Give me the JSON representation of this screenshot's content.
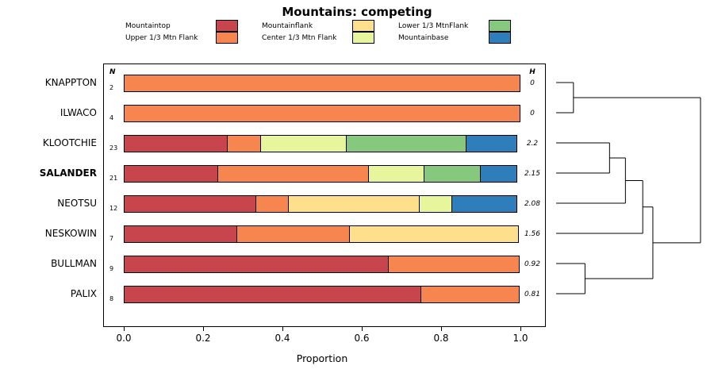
{
  "title": "Mountains: competing",
  "legend": {
    "items": [
      {
        "label": "Mountaintop",
        "color": "#C8454D"
      },
      {
        "label": "Upper 1/3 Mtn Flank",
        "color": "#F7854F"
      },
      {
        "label": "Mountainflank",
        "color": "#FEDF8B"
      },
      {
        "label": "Center 1/3 Mtn Flank",
        "color": "#E7F59C"
      },
      {
        "label": "Lower 1/3 MtnFlank",
        "color": "#86C87E"
      },
      {
        "label": "Mountainbase",
        "color": "#2E7EBC"
      }
    ]
  },
  "chart_data": {
    "type": "bar",
    "orientation": "horizontal-stacked",
    "xlabel": "Proportion",
    "xlim": [
      0,
      1
    ],
    "x_ticks": [
      "0.0",
      "0.2",
      "0.4",
      "0.6",
      "0.8",
      "1.0"
    ],
    "n_header": "N",
    "h_header": "H",
    "rows": [
      {
        "label": "KNAPPTON",
        "bold": false,
        "n": 2,
        "h": "0",
        "segments": [
          {
            "series": "Upper 1/3 Mtn Flank",
            "value": 1.0
          }
        ]
      },
      {
        "label": "ILWACO",
        "bold": false,
        "n": 4,
        "h": "0",
        "segments": [
          {
            "series": "Upper 1/3 Mtn Flank",
            "value": 1.0
          }
        ]
      },
      {
        "label": "KLOOTCHIE",
        "bold": false,
        "n": 23,
        "h": "2.2",
        "segments": [
          {
            "series": "Mountaintop",
            "value": 0.261
          },
          {
            "series": "Upper 1/3 Mtn Flank",
            "value": 0.087
          },
          {
            "series": "Center 1/3 Mtn Flank",
            "value": 0.217
          },
          {
            "series": "Lower 1/3 MtnFlank",
            "value": 0.304
          },
          {
            "series": "Mountainbase",
            "value": 0.131
          }
        ]
      },
      {
        "label": "SALANDER",
        "bold": true,
        "n": 21,
        "h": "2.15",
        "segments": [
          {
            "series": "Mountaintop",
            "value": 0.238
          },
          {
            "series": "Upper 1/3 Mtn Flank",
            "value": 0.381
          },
          {
            "series": "Center 1/3 Mtn Flank",
            "value": 0.143
          },
          {
            "series": "Lower 1/3 MtnFlank",
            "value": 0.143
          },
          {
            "series": "Mountainbase",
            "value": 0.095
          }
        ]
      },
      {
        "label": "NEOTSU",
        "bold": false,
        "n": 12,
        "h": "2.08",
        "segments": [
          {
            "series": "Mountaintop",
            "value": 0.333
          },
          {
            "series": "Upper 1/3 Mtn Flank",
            "value": 0.084
          },
          {
            "series": "Mountainflank",
            "value": 0.333
          },
          {
            "series": "Center 1/3 Mtn Flank",
            "value": 0.083
          },
          {
            "series": "Mountainbase",
            "value": 0.167
          }
        ]
      },
      {
        "label": "NESKOWIN",
        "bold": false,
        "n": 7,
        "h": "1.56",
        "segments": [
          {
            "series": "Mountaintop",
            "value": 0.286
          },
          {
            "series": "Upper 1/3 Mtn Flank",
            "value": 0.286
          },
          {
            "series": "Mountainflank",
            "value": 0.428
          }
        ]
      },
      {
        "label": "BULLMAN",
        "bold": false,
        "n": 9,
        "h": "0.92",
        "segments": [
          {
            "series": "Mountaintop",
            "value": 0.667
          },
          {
            "series": "Upper 1/3 Mtn Flank",
            "value": 0.333
          }
        ]
      },
      {
        "label": "PALIX",
        "bold": false,
        "n": 8,
        "h": "0.81",
        "segments": [
          {
            "series": "Mountaintop",
            "value": 0.75
          },
          {
            "series": "Upper 1/3 Mtn Flank",
            "value": 0.25
          }
        ]
      }
    ],
    "dendrogram": {
      "leaf_order": [
        "KNAPPTON",
        "ILWACO",
        "KLOOTCHIE",
        "SALANDER",
        "NEOTSU",
        "NESKOWIN",
        "BULLMAN",
        "PALIX"
      ],
      "segments": [
        {
          "x1": 0,
          "y1": 0,
          "x2": 0.12,
          "y2": 0
        },
        {
          "x1": 0,
          "y1": 1,
          "x2": 0.12,
          "y2": 1
        },
        {
          "x1": 0.12,
          "y1": 0,
          "x2": 0.12,
          "y2": 1
        },
        {
          "x1": 0,
          "y1": 2,
          "x2": 0.37,
          "y2": 2
        },
        {
          "x1": 0,
          "y1": 3,
          "x2": 0.37,
          "y2": 3
        },
        {
          "x1": 0.37,
          "y1": 2,
          "x2": 0.37,
          "y2": 3
        },
        {
          "x1": 0.37,
          "y1": 2.5,
          "x2": 0.48,
          "y2": 2.5
        },
        {
          "x1": 0,
          "y1": 4,
          "x2": 0.48,
          "y2": 4
        },
        {
          "x1": 0.48,
          "y1": 2.5,
          "x2": 0.48,
          "y2": 4
        },
        {
          "x1": 0.48,
          "y1": 3.25,
          "x2": 0.6,
          "y2": 3.25
        },
        {
          "x1": 0,
          "y1": 5,
          "x2": 0.6,
          "y2": 5
        },
        {
          "x1": 0.6,
          "y1": 3.25,
          "x2": 0.6,
          "y2": 5
        },
        {
          "x1": 0,
          "y1": 6,
          "x2": 0.2,
          "y2": 6
        },
        {
          "x1": 0,
          "y1": 7,
          "x2": 0.2,
          "y2": 7
        },
        {
          "x1": 0.2,
          "y1": 6,
          "x2": 0.2,
          "y2": 7
        },
        {
          "x1": 0.6,
          "y1": 4.125,
          "x2": 0.67,
          "y2": 4.125
        },
        {
          "x1": 0.2,
          "y1": 6.5,
          "x2": 0.67,
          "y2": 6.5
        },
        {
          "x1": 0.67,
          "y1": 4.125,
          "x2": 0.67,
          "y2": 6.5
        },
        {
          "x1": 0.12,
          "y1": 0.5,
          "x2": 1,
          "y2": 0.5
        },
        {
          "x1": 0.67,
          "y1": 5.3125,
          "x2": 1,
          "y2": 5.3125
        },
        {
          "x1": 1,
          "y1": 0.5,
          "x2": 1,
          "y2": 5.3125
        }
      ]
    }
  }
}
